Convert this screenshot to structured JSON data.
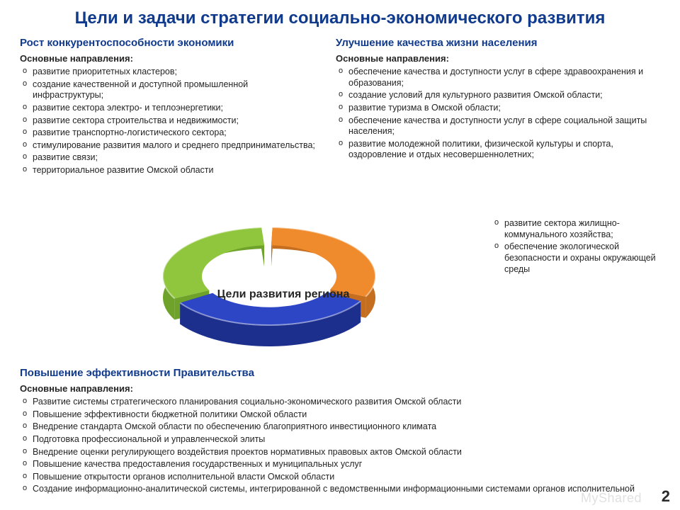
{
  "title": "Цели и задачи стратегии социально-экономического развития",
  "subhead_label": "Основные направления:",
  "ring_center_label": "Цели развития региона",
  "page_number": "2",
  "watermark": "MyShared",
  "sections": {
    "left": {
      "heading": "Рост конкурентоспособности экономики",
      "items": [
        "развитие приоритетных кластеров;",
        "создание качественной и доступной промышленной инфраструктуры;",
        "развитие сектора электро- и теплоэнергетики;",
        "развитие сектора строительства и недвижимости;",
        "развитие транспортно-логистического сектора;",
        "стимулирование развития малого и среднего предпринимательства;",
        "развитие связи;",
        "территориальное развитие Омской области"
      ]
    },
    "right": {
      "heading": "Улучшение качества жизни населения",
      "items": [
        "обеспечение качества и доступности услуг в сфере здравоохранения и образования;",
        "создание условий для культурного развития Омской области;",
        "развитие туризма в Омской области;",
        "обеспечение качества и доступности услуг в сфере социальной защиты населения;",
        "развитие молодежной политики, физической культуры и спорта, оздоровление и отдых несовершеннолетних;"
      ],
      "extra_items": [
        "развитие сектора жилищно-коммунального хозяйства;",
        "обеспечение экологической безопасности и охраны окружающей среды"
      ]
    },
    "bottom": {
      "heading": "Повышение эффективности Правительства",
      "items": [
        "Развитие системы стратегического планирования социально-экономического развития Омской области",
        "Повышение эффективности бюджетной политики Омской области",
        "Внедрение стандарта Омской области по обеспечению благоприятного инвестиционного климата",
        "Подготовка профессиональной и управленческой элиты",
        "Внедрение оценки регулирующего воздействия проектов нормативных правовых актов Омской области",
        "Повышение качества предоставления государственных и муниципальных услуг",
        "Повышение открытости органов исполнительной власти Омской области",
        "Создание информационно-аналитической системы, интегрированной с ведомственными информационными системами органов исполнительной"
      ]
    }
  },
  "ring": {
    "type": "3d-donut",
    "segments": [
      {
        "name": "green",
        "value": 33,
        "color_top": "#90c63d",
        "color_side": "#6fa22a"
      },
      {
        "name": "orange",
        "value": 33,
        "color_top": "#f08b2d",
        "color_side": "#c66e1f"
      },
      {
        "name": "blue",
        "value": 34,
        "color_top": "#2d46c6",
        "color_side": "#1d2f8c"
      }
    ],
    "gap_deg": 6,
    "outer_r": 150,
    "inner_r": 95,
    "depth": 30,
    "tilt": 0.46,
    "background": "#ffffff"
  }
}
